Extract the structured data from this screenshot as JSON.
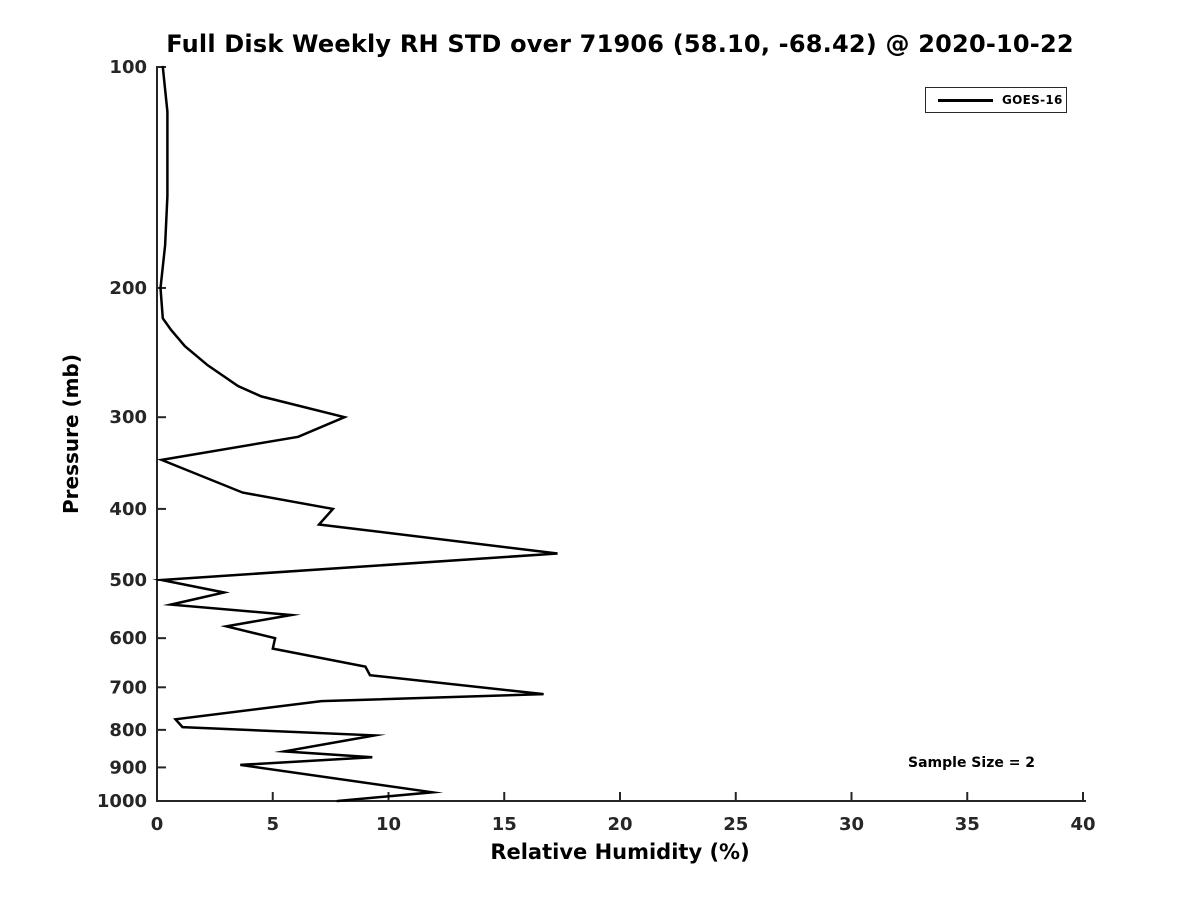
{
  "chart_data": {
    "type": "line",
    "title": "Full Disk Weekly RH STD over 71906 (58.10, -68.42) @ 2020-10-22",
    "xlabel": "Relative Humidity (%)",
    "ylabel": "Pressure (mb)",
    "xlim": [
      0,
      40
    ],
    "x_ticks": [
      0,
      5,
      10,
      15,
      20,
      25,
      30,
      35,
      40
    ],
    "ylim": [
      100,
      1000
    ],
    "y_ticks": [
      100,
      200,
      300,
      400,
      500,
      600,
      700,
      800,
      900,
      1000
    ],
    "y_scale": "log",
    "y_inverted": true,
    "grid": false,
    "axis_color": "#262626",
    "legend": {
      "position": "top-right",
      "entries": [
        {
          "label": "GOES-16",
          "color": "#000000"
        }
      ]
    },
    "annotation": "Sample Size = 2",
    "series": [
      {
        "name": "GOES-16",
        "color": "#000000",
        "pressure_mb": [
          100,
          115,
          150,
          175,
          200,
          220,
          228,
          240,
          255,
          272,
          281,
          300,
          319,
          343,
          380,
          400,
          420,
          460,
          500,
          520,
          540,
          558,
          578,
          600,
          620,
          656,
          674,
          715,
          731,
          774,
          793,
          814,
          856,
          872,
          893,
          973,
          1000
        ],
        "rh_percent": [
          0.25,
          0.45,
          0.45,
          0.35,
          0.15,
          0.25,
          0.6,
          1.2,
          2.2,
          3.5,
          4.5,
          8.1,
          6.1,
          0.2,
          3.7,
          7.6,
          7.0,
          17.3,
          0.2,
          2.9,
          0.6,
          5.8,
          3.0,
          5.1,
          5.0,
          9.0,
          9.2,
          16.7,
          7.1,
          0.8,
          1.1,
          9.4,
          5.5,
          9.3,
          3.6,
          11.9,
          7.8
        ]
      }
    ]
  }
}
